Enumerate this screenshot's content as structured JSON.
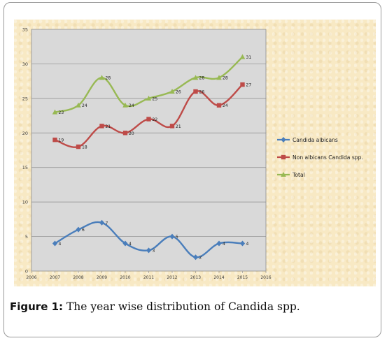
{
  "figure": {
    "caption_label": "Figure 1:",
    "caption_text": " The year wise distribution of Candida spp."
  },
  "chart_data": {
    "type": "line",
    "title": "",
    "xlabel": "",
    "ylabel": "",
    "x": [
      2007,
      2008,
      2009,
      2010,
      2011,
      2012,
      2013,
      2014,
      2015
    ],
    "xlim": [
      2006,
      2016
    ],
    "ylim": [
      0,
      35
    ],
    "x_ticks": [
      "2006",
      "2007",
      "2008",
      "2009",
      "2010",
      "2011",
      "2012",
      "2013",
      "2014",
      "2015",
      "2016"
    ],
    "y_ticks": [
      "0",
      "5",
      "10",
      "15",
      "20",
      "25",
      "30",
      "35"
    ],
    "grid": true,
    "legend_position": "right",
    "smooth": true,
    "series": [
      {
        "name": "Candida albicans",
        "values": [
          4,
          6,
          7,
          4,
          3,
          5,
          2,
          4,
          4
        ],
        "color": "#4a7ebb",
        "marker": "diamond"
      },
      {
        "name": "Non albicans Candida spp.",
        "values": [
          19,
          18,
          21,
          20,
          22,
          21,
          26,
          24,
          27
        ],
        "color": "#be4b48",
        "marker": "square"
      },
      {
        "name": "Total",
        "values": [
          23,
          24,
          28,
          24,
          25,
          26,
          28,
          28,
          31
        ],
        "color": "#98b954",
        "marker": "triangle"
      }
    ],
    "plot_background": "#d9d9d9"
  }
}
